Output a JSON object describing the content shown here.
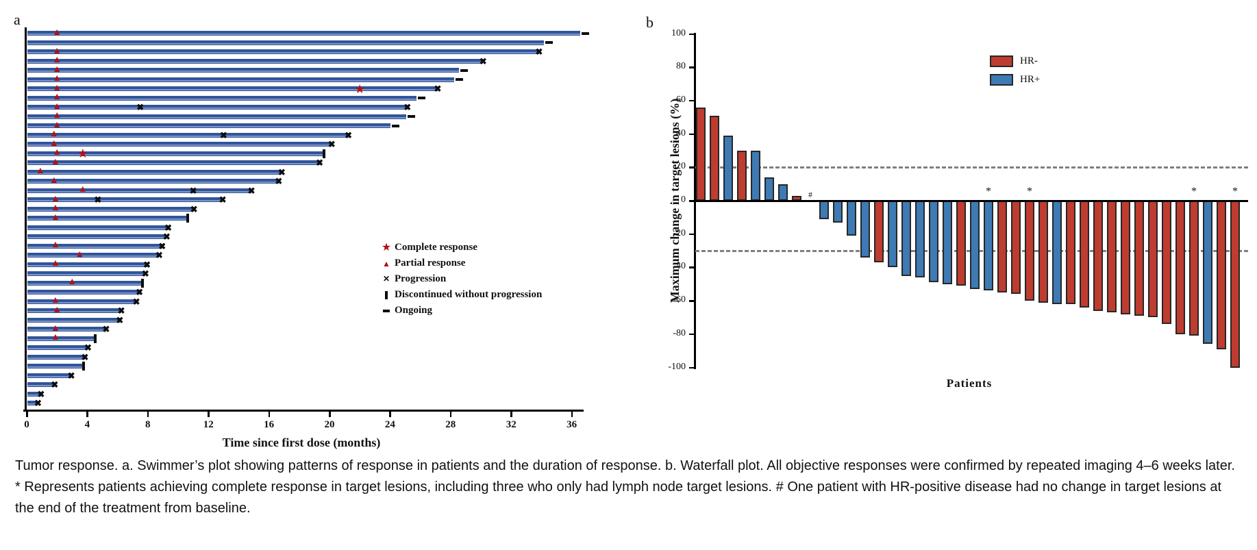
{
  "figure": {
    "panel_a_label": "a",
    "panel_b_label": "b"
  },
  "caption": "Tumor response. a. Swimmer’s plot showing patterns of response in patients and the duration of response. b. Waterfall plot. All objective responses were confirmed by repeated imaging 4–6 weeks later. * Represents patients achieving complete response in target lesions, including three who only had lymph node target lesions. # One patient with HR-positive disease had no change in target lesions at the end of the treatment from baseline.",
  "chart_data": [
    {
      "type": "bar",
      "name": "swimmer-plot",
      "orientation": "horizontal",
      "xlabel": "Time since first dose (months)",
      "x_ticks": [
        0,
        4,
        8,
        12,
        16,
        20,
        24,
        28,
        32,
        36
      ],
      "xlim": [
        0,
        37
      ],
      "bar_color": "#30559b",
      "marker_color": "#b11116",
      "legend": [
        {
          "symbol": "star",
          "label": "Complete response"
        },
        {
          "symbol": "triangle",
          "label": "Partial response"
        },
        {
          "symbol": "x",
          "label": "Progression"
        },
        {
          "symbol": "pipe",
          "label": "Discontinued without progression"
        },
        {
          "symbol": "dash",
          "label": "Ongoing"
        }
      ],
      "patients": [
        {
          "duration": 36.5,
          "end": "ongoing",
          "markers": [
            {
              "t": "triangle",
              "m": 2.0
            }
          ]
        },
        {
          "duration": 34.1,
          "end": "ongoing",
          "markers": []
        },
        {
          "duration": 33.8,
          "end": "progression",
          "markers": [
            {
              "t": "triangle",
              "m": 2.0
            }
          ]
        },
        {
          "duration": 30.1,
          "end": "progression",
          "markers": [
            {
              "t": "triangle",
              "m": 2.0
            }
          ]
        },
        {
          "duration": 28.5,
          "end": "ongoing",
          "markers": [
            {
              "t": "triangle",
              "m": 2.0
            }
          ]
        },
        {
          "duration": 28.2,
          "end": "ongoing",
          "markers": [
            {
              "t": "triangle",
              "m": 2.0
            }
          ]
        },
        {
          "duration": 27.1,
          "end": "progression",
          "markers": [
            {
              "t": "triangle",
              "m": 2.0
            },
            {
              "t": "star",
              "m": 22.0
            }
          ]
        },
        {
          "duration": 25.7,
          "end": "ongoing",
          "markers": [
            {
              "t": "triangle",
              "m": 2.0
            }
          ]
        },
        {
          "duration": 25.1,
          "end": "progression",
          "markers": [
            {
              "t": "triangle",
              "m": 2.0
            },
            {
              "t": "x",
              "m": 7.5
            }
          ]
        },
        {
          "duration": 25.0,
          "end": "ongoing",
          "markers": [
            {
              "t": "triangle",
              "m": 2.0
            }
          ]
        },
        {
          "duration": 24.0,
          "end": "ongoing",
          "markers": [
            {
              "t": "triangle",
              "m": 2.0
            }
          ]
        },
        {
          "duration": 21.2,
          "end": "progression",
          "markers": [
            {
              "t": "triangle",
              "m": 1.8
            },
            {
              "t": "x",
              "m": 13.0
            }
          ]
        },
        {
          "duration": 20.1,
          "end": "progression",
          "markers": [
            {
              "t": "triangle",
              "m": 1.8
            }
          ]
        },
        {
          "duration": 19.5,
          "end": "discontinued",
          "markers": [
            {
              "t": "triangle",
              "m": 2.0
            },
            {
              "t": "star",
              "m": 3.7
            }
          ]
        },
        {
          "duration": 19.3,
          "end": "progression",
          "markers": [
            {
              "t": "triangle",
              "m": 1.9
            }
          ]
        },
        {
          "duration": 16.8,
          "end": "progression",
          "markers": [
            {
              "t": "triangle",
              "m": 0.9
            }
          ]
        },
        {
          "duration": 16.6,
          "end": "progression",
          "markers": [
            {
              "t": "triangle",
              "m": 1.8
            }
          ]
        },
        {
          "duration": 14.8,
          "end": "progression",
          "markers": [
            {
              "t": "triangle",
              "m": 3.7
            },
            {
              "t": "x",
              "m": 11.0
            }
          ]
        },
        {
          "duration": 12.9,
          "end": "progression",
          "markers": [
            {
              "t": "triangle",
              "m": 1.9
            },
            {
              "t": "x",
              "m": 4.7
            }
          ]
        },
        {
          "duration": 11.0,
          "end": "progression",
          "markers": [
            {
              "t": "triangle",
              "m": 1.9
            }
          ]
        },
        {
          "duration": 10.5,
          "end": "discontinued",
          "markers": [
            {
              "t": "triangle",
              "m": 1.9
            }
          ]
        },
        {
          "duration": 9.3,
          "end": "progression",
          "markers": []
        },
        {
          "duration": 9.2,
          "end": "progression",
          "markers": []
        },
        {
          "duration": 8.9,
          "end": "progression",
          "markers": [
            {
              "t": "triangle",
              "m": 1.9
            }
          ]
        },
        {
          "duration": 8.7,
          "end": "progression",
          "markers": [
            {
              "t": "triangle",
              "m": 3.5
            }
          ]
        },
        {
          "duration": 7.9,
          "end": "progression",
          "markers": [
            {
              "t": "triangle",
              "m": 1.9
            }
          ]
        },
        {
          "duration": 7.8,
          "end": "progression",
          "markers": []
        },
        {
          "duration": 7.5,
          "end": "discontinued",
          "markers": [
            {
              "t": "triangle",
              "m": 3.0
            }
          ]
        },
        {
          "duration": 7.4,
          "end": "progression",
          "markers": []
        },
        {
          "duration": 7.2,
          "end": "progression",
          "markers": [
            {
              "t": "triangle",
              "m": 1.9
            }
          ]
        },
        {
          "duration": 6.2,
          "end": "progression",
          "markers": [
            {
              "t": "triangle",
              "m": 2.0
            }
          ]
        },
        {
          "duration": 6.1,
          "end": "progression",
          "markers": []
        },
        {
          "duration": 5.2,
          "end": "progression",
          "markers": [
            {
              "t": "triangle",
              "m": 1.9
            }
          ]
        },
        {
          "duration": 4.4,
          "end": "discontinued",
          "markers": [
            {
              "t": "triangle",
              "m": 1.9
            }
          ]
        },
        {
          "duration": 4.0,
          "end": "progression",
          "markers": []
        },
        {
          "duration": 3.8,
          "end": "progression",
          "markers": []
        },
        {
          "duration": 3.6,
          "end": "discontinued",
          "markers": []
        },
        {
          "duration": 2.9,
          "end": "progression",
          "markers": []
        },
        {
          "duration": 1.8,
          "end": "progression",
          "markers": []
        },
        {
          "duration": 0.9,
          "end": "progression",
          "markers": []
        },
        {
          "duration": 0.7,
          "end": "progression",
          "markers": []
        }
      ]
    },
    {
      "type": "bar",
      "name": "waterfall-plot",
      "ylabel": "Maximum change in target lesions (%)",
      "xlabel": "Patients",
      "ylim": [
        -100,
        100
      ],
      "y_ticks": [
        100,
        80,
        60,
        40,
        20,
        0,
        -20,
        -40,
        -60,
        -80,
        -100
      ],
      "reference_lines": [
        20,
        -30
      ],
      "grid": false,
      "legend_position": "top-right",
      "legend": [
        {
          "label": "HR-",
          "color": "#bf3c30"
        },
        {
          "label": "HR+",
          "color": "#3e7ab3"
        }
      ],
      "series": [
        {
          "name": "maximum-change",
          "patients": [
            {
              "value": 56,
              "group": "HR-"
            },
            {
              "value": 51,
              "group": "HR-"
            },
            {
              "value": 39,
              "group": "HR+"
            },
            {
              "value": 30,
              "group": "HR-"
            },
            {
              "value": 30,
              "group": "HR+"
            },
            {
              "value": 14,
              "group": "HR+"
            },
            {
              "value": 10,
              "group": "HR+"
            },
            {
              "value": 3,
              "group": "HR-"
            },
            {
              "value": 0,
              "group": "HR+",
              "annotation": "#"
            },
            {
              "value": -11,
              "group": "HR+"
            },
            {
              "value": -13,
              "group": "HR+"
            },
            {
              "value": -21,
              "group": "HR+"
            },
            {
              "value": -34,
              "group": "HR+"
            },
            {
              "value": -37,
              "group": "HR-"
            },
            {
              "value": -40,
              "group": "HR+"
            },
            {
              "value": -45,
              "group": "HR+"
            },
            {
              "value": -46,
              "group": "HR+"
            },
            {
              "value": -49,
              "group": "HR+"
            },
            {
              "value": -50,
              "group": "HR+"
            },
            {
              "value": -51,
              "group": "HR-"
            },
            {
              "value": -53,
              "group": "HR+"
            },
            {
              "value": -54,
              "group": "HR+",
              "annotation": "*"
            },
            {
              "value": -55,
              "group": "HR-"
            },
            {
              "value": -56,
              "group": "HR-"
            },
            {
              "value": -60,
              "group": "HR-",
              "annotation": "*"
            },
            {
              "value": -61,
              "group": "HR-"
            },
            {
              "value": -62,
              "group": "HR+"
            },
            {
              "value": -62,
              "group": "HR-"
            },
            {
              "value": -64,
              "group": "HR-"
            },
            {
              "value": -66,
              "group": "HR-"
            },
            {
              "value": -67,
              "group": "HR-"
            },
            {
              "value": -68,
              "group": "HR-"
            },
            {
              "value": -69,
              "group": "HR-"
            },
            {
              "value": -70,
              "group": "HR-"
            },
            {
              "value": -74,
              "group": "HR-"
            },
            {
              "value": -80,
              "group": "HR-"
            },
            {
              "value": -81,
              "group": "HR-",
              "annotation": "*"
            },
            {
              "value": -86,
              "group": "HR+"
            },
            {
              "value": -89,
              "group": "HR-"
            },
            {
              "value": -100,
              "group": "HR-",
              "annotation": "*"
            }
          ]
        }
      ]
    }
  ]
}
